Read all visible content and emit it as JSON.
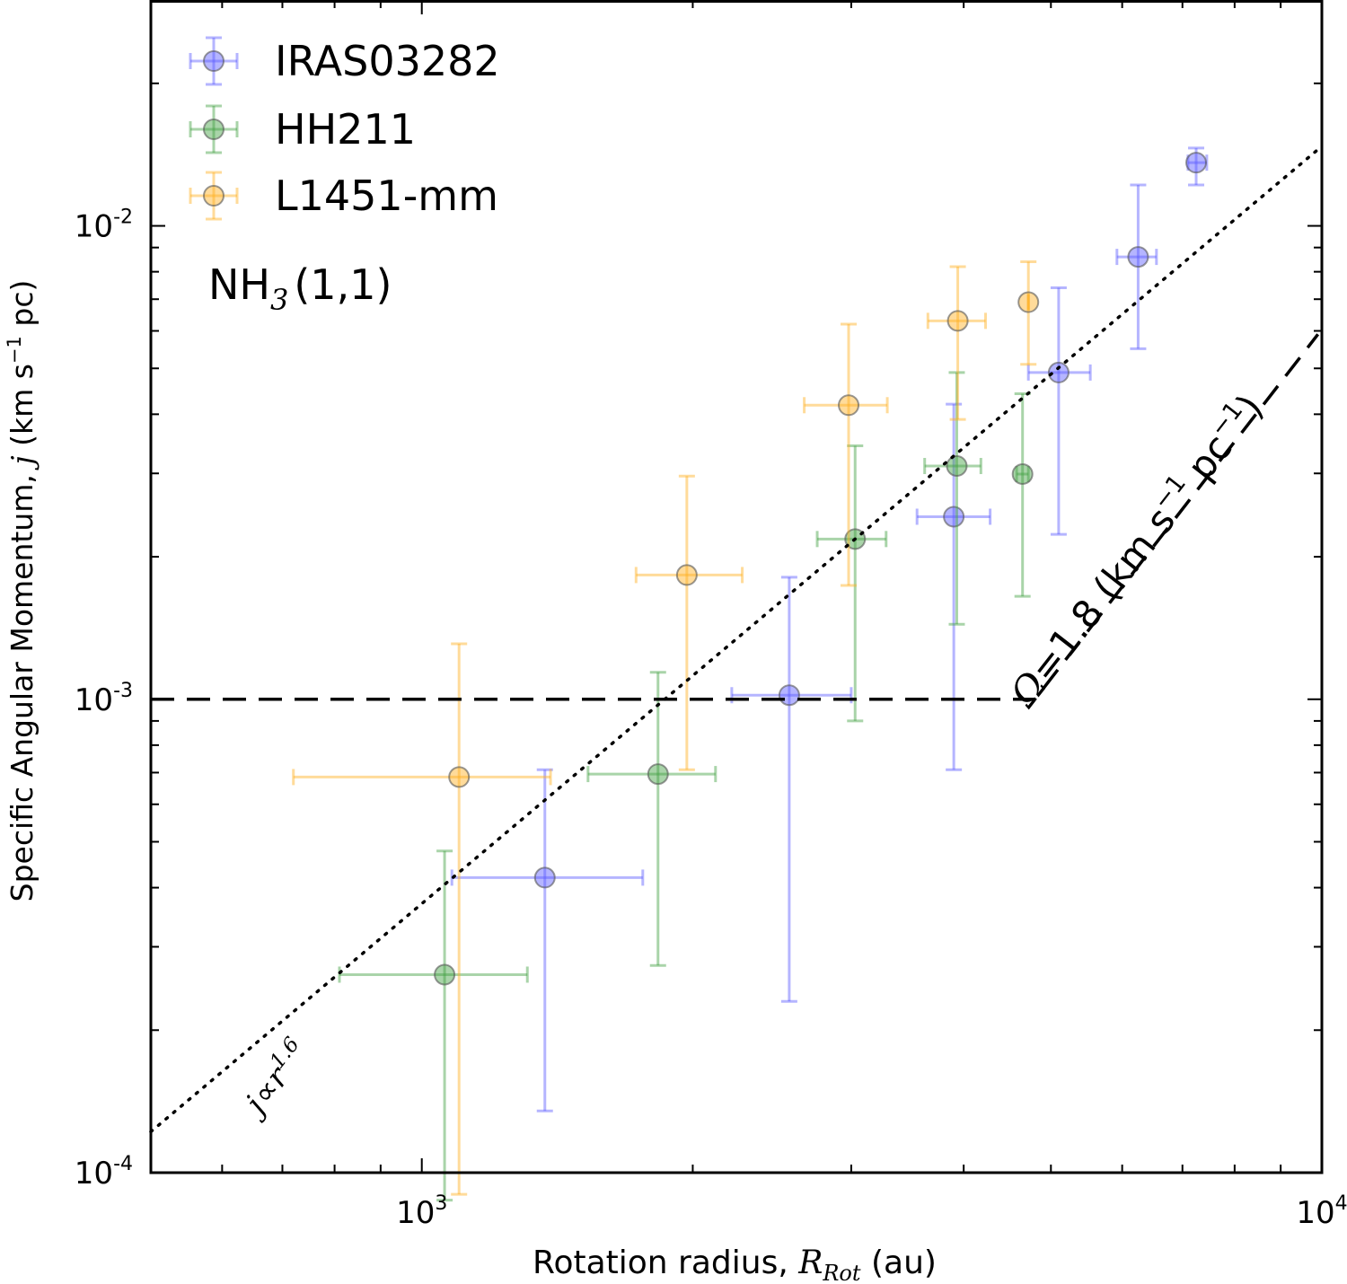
{
  "chart_data": {
    "type": "scatter",
    "xlabel_text": "Rotation radius, ",
    "xlabel_symbol": "R",
    "xlabel_sub": "Rot",
    "xlabel_unit": " (au)",
    "ylabel_text": "Specific Angular Momentum, ",
    "ylabel_symbol": "j",
    "ylabel_unit_pre": " (km s",
    "ylabel_unit_sup": "−1",
    "ylabel_unit_post": " pc)",
    "xscale": "log",
    "yscale": "log",
    "xlim": [
      500,
      10000
    ],
    "ylim": [
      0.0001,
      0.03
    ],
    "x_ticks": [
      {
        "value": 1000,
        "base": "10",
        "exp": "3"
      },
      {
        "value": 10000,
        "base": "10",
        "exp": "4"
      }
    ],
    "y_ticks": [
      {
        "value": 0.0001,
        "base": "10",
        "exp": "-4"
      },
      {
        "value": 0.001,
        "base": "10",
        "exp": "-3"
      },
      {
        "value": 0.01,
        "base": "10",
        "exp": "-2"
      }
    ],
    "legend_position": "top-left",
    "molecule_label": {
      "main": "NH",
      "sub": "3",
      "rest": "(1,1)"
    },
    "series": [
      {
        "name": "IRAS03282",
        "color": "#5b5bff",
        "points": [
          {
            "x": 1370,
            "y": 0.00042,
            "xerr": [
              1080,
              1760
            ],
            "yerr": [
              0.000135,
              0.00071
            ]
          },
          {
            "x": 2560,
            "y": 0.00102,
            "xerr": [
              2210,
              3000
            ],
            "yerr": [
              0.00023,
              0.00181
            ]
          },
          {
            "x": 3900,
            "y": 0.00243,
            "xerr": [
              3550,
              4280
            ],
            "yerr": [
              0.00071,
              0.0042
            ]
          },
          {
            "x": 5100,
            "y": 0.0049,
            "xerr": [
              4720,
              5530
            ],
            "yerr": [
              0.00223,
              0.0074
            ]
          },
          {
            "x": 6250,
            "y": 0.0086,
            "xerr": [
              5920,
              6550
            ],
            "yerr": [
              0.0055,
              0.0122
            ]
          },
          {
            "x": 7250,
            "y": 0.0136,
            "xerr": [
              7100,
              7450
            ],
            "yerr": [
              0.0122,
              0.0146
            ]
          }
        ]
      },
      {
        "name": "HH211",
        "color": "#40a040",
        "points": [
          {
            "x": 1060,
            "y": 0.000262,
            "xerr": [
              810,
              1310
            ],
            "yerr": [
              8.75e-05,
              0.000478
            ]
          },
          {
            "x": 1830,
            "y": 0.000695,
            "xerr": [
              1530,
              2120
            ],
            "yerr": [
              0.000274,
              0.00114
            ]
          },
          {
            "x": 3030,
            "y": 0.00218,
            "xerr": [
              2750,
              3280
            ],
            "yerr": [
              0.0009,
              0.00343
            ]
          },
          {
            "x": 3930,
            "y": 0.00311,
            "xerr": [
              3620,
              4180
            ],
            "yerr": [
              0.00144,
              0.0049
            ]
          },
          {
            "x": 4650,
            "y": 0.00299,
            "xerr": [
              4580,
              4720
            ],
            "yerr": [
              0.00165,
              0.00442
            ]
          }
        ]
      },
      {
        "name": "L1451-mm",
        "color": "#ffb020",
        "points": [
          {
            "x": 1100,
            "y": 0.000685,
            "xerr": [
              720,
              1390
            ],
            "yerr": [
              9e-05,
              0.00131
            ]
          },
          {
            "x": 1970,
            "y": 0.00183,
            "xerr": [
              1730,
              2270
            ],
            "yerr": [
              0.00071,
              0.00296
            ]
          },
          {
            "x": 2980,
            "y": 0.00418,
            "xerr": [
              2660,
              3290
            ],
            "yerr": [
              0.00174,
              0.0062
            ]
          },
          {
            "x": 3940,
            "y": 0.0063,
            "xerr": [
              3650,
              4230
            ],
            "yerr": [
              0.0039,
              0.0082
            ]
          },
          {
            "x": 4720,
            "y": 0.0069,
            "xerr": [
              4720,
              4720
            ],
            "yerr": [
              0.0051,
              0.0084
            ]
          }
        ]
      }
    ],
    "lines": [
      {
        "name": "power-law-fit",
        "style": "dotted",
        "slope": 1.6,
        "anchor": {
          "x": 1000,
          "y": 0.00037
        },
        "label": {
          "symbol": "j",
          "mid": "∝",
          "var": "r",
          "exp": "1.6"
        }
      },
      {
        "name": "threshold-line",
        "style": "dashed",
        "points": [
          [
            500,
            0.001
          ],
          [
            4800,
            0.001
          ],
          [
            9900,
            0.0059
          ]
        ],
        "label": {
          "symbol": "Ω",
          "mid": "=1.8 (km s",
          "sup1": "−1",
          "mid2": "  pc",
          "sup2": "−1",
          "end": ")"
        }
      }
    ]
  }
}
